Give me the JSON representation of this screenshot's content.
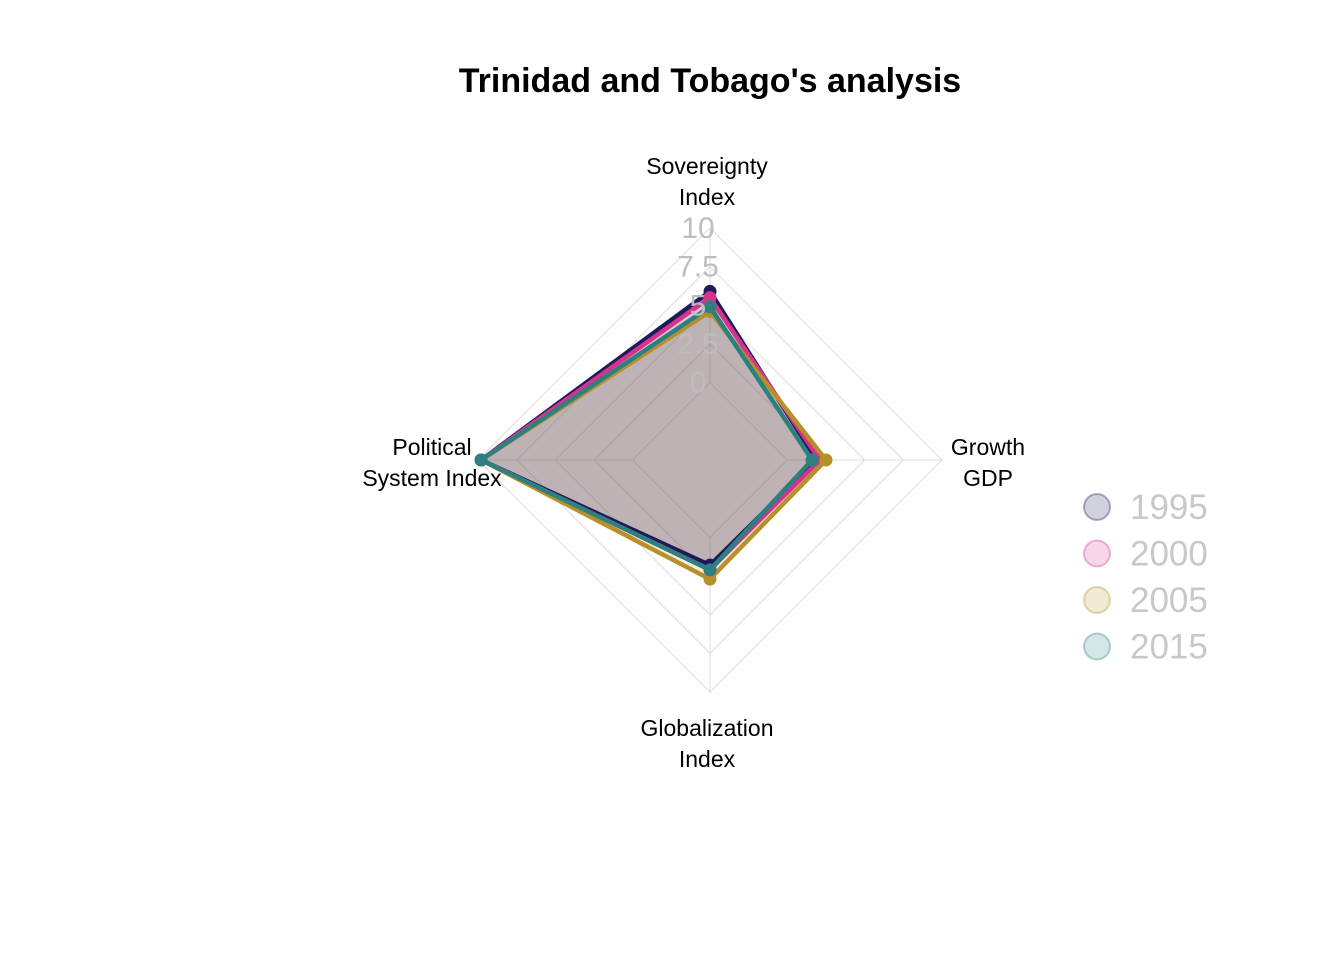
{
  "chart_data": {
    "type": "radar",
    "title": "Trinidad and Tobago's analysis",
    "axes": [
      [
        "Sovereignty",
        "Index"
      ],
      [
        "Growth",
        "GDP"
      ],
      [
        "Globalization",
        "Index"
      ],
      [
        "Political",
        "System Index"
      ]
    ],
    "range": [
      -5,
      10
    ],
    "ticks": [
      "0",
      "2.5",
      "5",
      "7.5",
      "10"
    ],
    "tick_values": [
      0,
      2.5,
      5,
      7.5,
      10
    ],
    "grid": true,
    "legend_position": "right",
    "series": [
      {
        "name": "1995",
        "color": "#1f1a5c",
        "values": [
          5.9,
          1.9,
          1.8,
          9.8
        ]
      },
      {
        "name": "2000",
        "color": "#d6338a",
        "values": [
          5.5,
          2.1,
          2.1,
          9.8
        ]
      },
      {
        "name": "2005",
        "color": "#b8902a",
        "values": [
          4.6,
          2.5,
          2.7,
          9.8
        ]
      },
      {
        "name": "2015",
        "color": "#2e8080",
        "values": [
          4.9,
          1.6,
          2.1,
          9.8
        ]
      }
    ]
  }
}
